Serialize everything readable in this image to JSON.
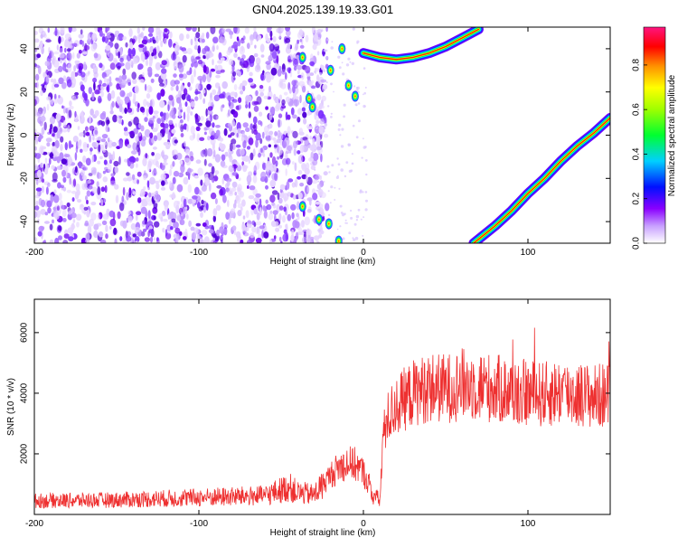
{
  "title": "GN04.2025.139.19.33.G01",
  "chart_data": [
    {
      "type": "heatmap",
      "xlabel": "Height of straight line (km)",
      "ylabel": "Frequency (Hz)",
      "xlim": [
        -200,
        150
      ],
      "ylim": [
        -50,
        50
      ],
      "xticks": [
        -200,
        -100,
        0,
        100
      ],
      "yticks": [
        -40,
        -20,
        0,
        20,
        40
      ],
      "colorbar": {
        "label": "Normalized spectral amplitude",
        "ticks": [
          "0.0",
          "0.2",
          "0.4",
          "0.6",
          "0.8"
        ],
        "tick_values": [
          0.0,
          0.2,
          0.4,
          0.6,
          0.8
        ],
        "range": [
          0,
          0.97
        ],
        "colors": [
          "#ffffff",
          "#9b00ff",
          "#0000ff",
          "#00e5ff",
          "#00ff00",
          "#ffff00",
          "#ff8c00",
          "#ff0000",
          "#ff1493"
        ]
      },
      "features": {
        "noise_region_km": [
          -200,
          -30
        ],
        "upper_curve": {
          "x": [
            0,
            10,
            20,
            30,
            40,
            50,
            60,
            70
          ],
          "y": [
            38,
            36,
            35,
            36,
            38,
            41,
            45,
            49
          ]
        },
        "lower_line": {
          "x": [
            67,
            80,
            90,
            100,
            110,
            120,
            130,
            140,
            150
          ],
          "y": [
            -50,
            -42,
            -35,
            -27,
            -20,
            -12,
            -5,
            1,
            8
          ]
        },
        "blobs": [
          {
            "x": -37,
            "y": 36
          },
          {
            "x": -33,
            "y": 17
          },
          {
            "x": -31,
            "y": 13
          },
          {
            "x": -20,
            "y": 30
          },
          {
            "x": -13,
            "y": 40
          },
          {
            "x": -9,
            "y": 23
          },
          {
            "x": -5,
            "y": 18
          },
          {
            "x": -37,
            "y": -33
          },
          {
            "x": -27,
            "y": -39
          },
          {
            "x": -21,
            "y": -41
          },
          {
            "x": -15,
            "y": -49
          }
        ]
      }
    },
    {
      "type": "line",
      "xlabel": "Height of straight line (km)",
      "ylabel": "SNR (10 * v/v)",
      "xlim": [
        -200,
        150
      ],
      "ylim": [
        0,
        7100
      ],
      "xticks": [
        -200,
        -100,
        0,
        100
      ],
      "yticks": [
        2000,
        4000,
        6000
      ],
      "color": "#ee3030",
      "x": [
        -200,
        -150,
        -100,
        -60,
        -45,
        -40,
        -30,
        -20,
        -15,
        -10,
        -5,
        0,
        5,
        10,
        12,
        15,
        20,
        30,
        40,
        50,
        60,
        70,
        80,
        90,
        100,
        110,
        120,
        130,
        140,
        150
      ],
      "y": [
        450,
        480,
        560,
        620,
        900,
        720,
        650,
        1300,
        1550,
        1700,
        1650,
        1400,
        700,
        450,
        2600,
        3200,
        3600,
        4000,
        4200,
        4150,
        4300,
        4250,
        4150,
        4050,
        4000,
        3950,
        4050,
        3950,
        3900,
        3950
      ]
    }
  ]
}
